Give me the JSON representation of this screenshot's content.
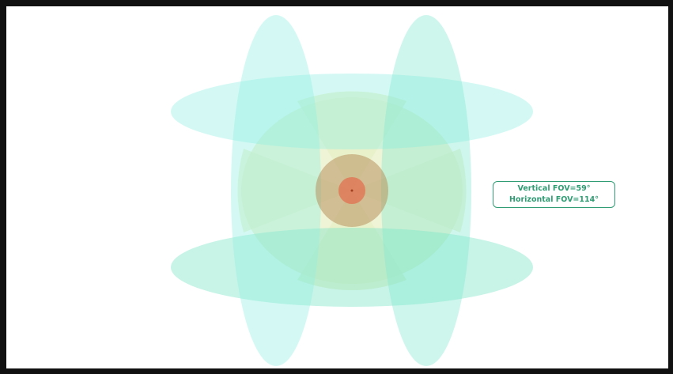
{
  "annotation": {
    "vertical_fov": "Vertical FOV=59°",
    "horizontal_fov": "Horizontal FOV=114°"
  },
  "colors": {
    "lobe_fill": "#7fe8d9",
    "lower_lobe_fill": "#6fe0c0",
    "cone_fill": "#e6efc9",
    "inner_ring": "#b98a5a",
    "core": "#e4795a",
    "label_border": "#2f9c73",
    "label_text": "#2f9c73"
  }
}
